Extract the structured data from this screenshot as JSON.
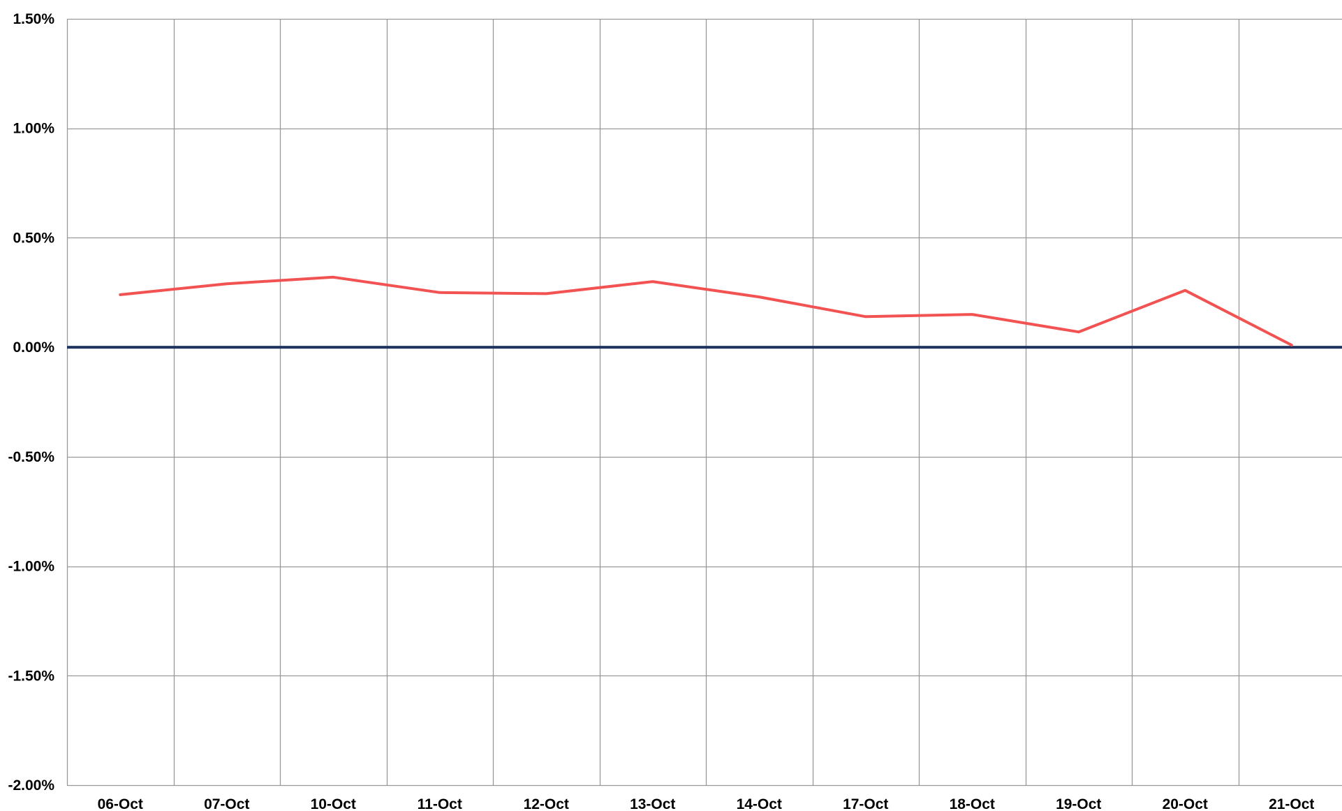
{
  "chart_data": {
    "type": "line",
    "title": "",
    "xlabel": "",
    "ylabel": "",
    "categories": [
      "06-Oct",
      "07-Oct",
      "10-Oct",
      "11-Oct",
      "12-Oct",
      "13-Oct",
      "14-Oct",
      "17-Oct",
      "18-Oct",
      "19-Oct",
      "20-Oct",
      "21-Oct"
    ],
    "ylim": [
      -0.02,
      0.015
    ],
    "y_ticks": [
      0.015,
      0.01,
      0.005,
      0.0,
      -0.005,
      -0.01,
      -0.015,
      -0.02
    ],
    "y_tick_labels": [
      "1.50%",
      "1.00%",
      "0.50%",
      "0.00%",
      "-0.50%",
      "-1.00%",
      "-1.50%",
      "-2.00%"
    ],
    "grid": true,
    "legend": "none",
    "series": [
      {
        "color": "#f25252",
        "values": [
          0.0024,
          0.0029,
          0.0032,
          0.0025,
          0.00245,
          0.003,
          0.0023,
          0.0014,
          0.0015,
          0.0007,
          0.0026,
          0.0001
        ]
      }
    ],
    "reference_line": {
      "y": 0.0,
      "color": "#1f3560"
    },
    "colors": {
      "grid": "#999999",
      "axis_text": "#000000"
    }
  }
}
